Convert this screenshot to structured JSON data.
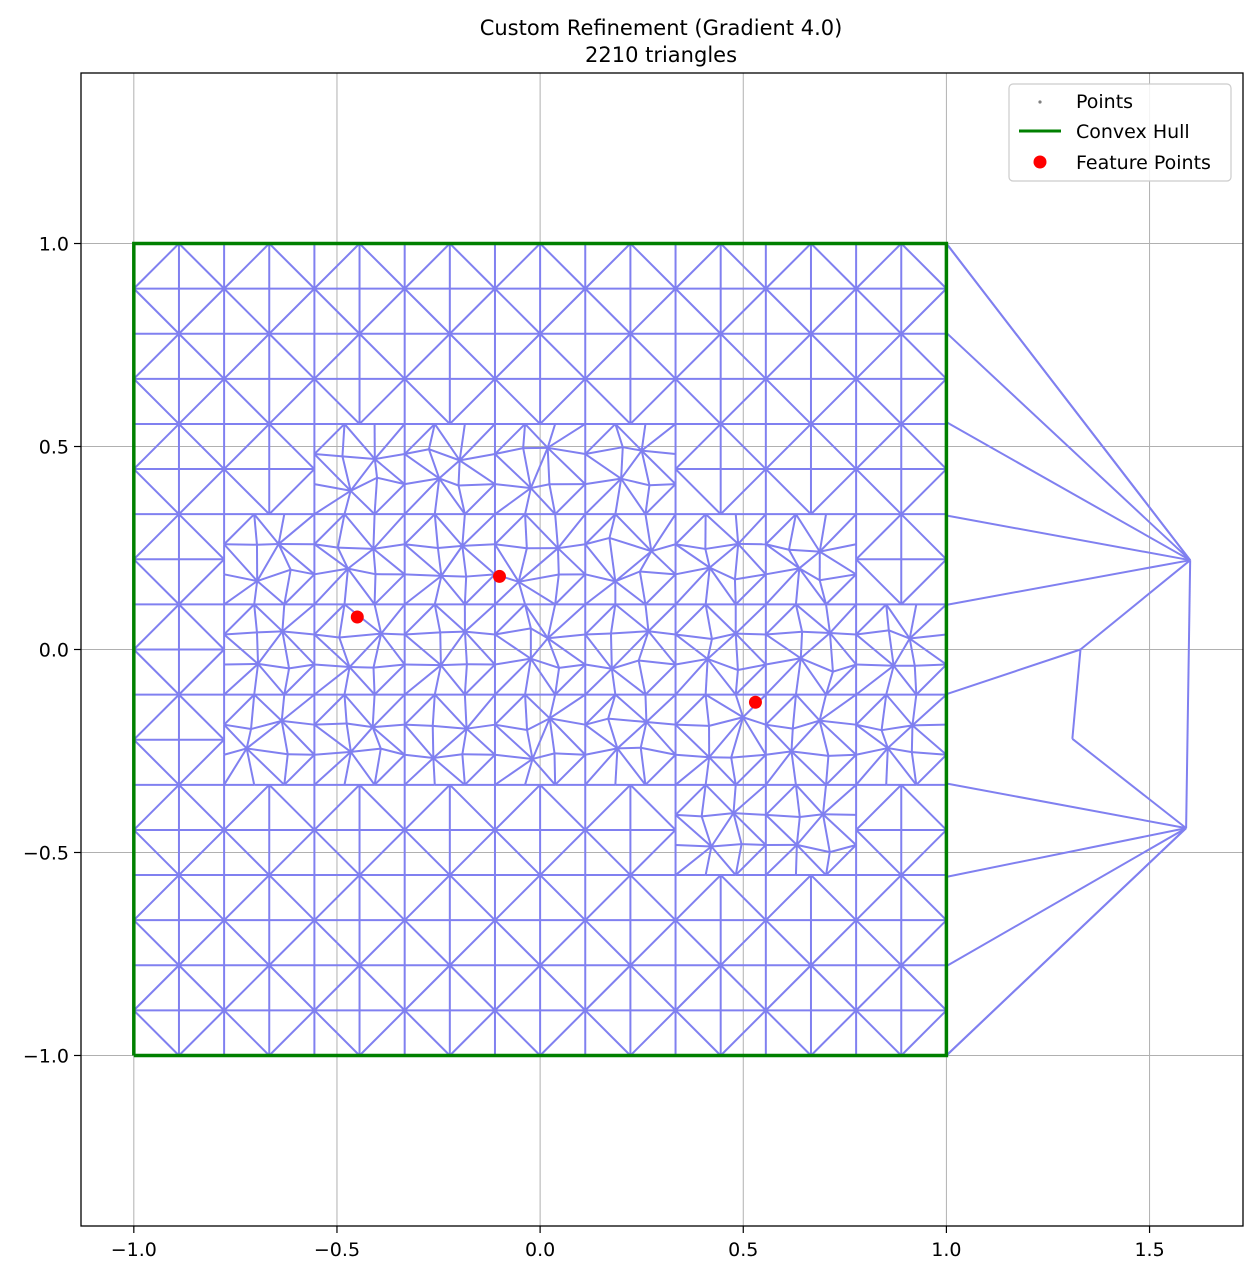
{
  "chart_data": {
    "type": "scatter",
    "title": "Custom Refinement (Gradient 4.0)",
    "subtitle": "2210 triangles",
    "xlabel": "",
    "ylabel": "",
    "xlim": [
      -1.13,
      1.73
    ],
    "ylim": [
      -1.42,
      1.42
    ],
    "x_ticks": [
      -1.0,
      -0.5,
      0.0,
      0.5,
      1.0,
      1.5
    ],
    "x_tick_labels": [
      "−1.0",
      "−0.5",
      "0.0",
      "0.5",
      "1.0",
      "1.5"
    ],
    "y_ticks": [
      1.0,
      0.5,
      0.0,
      -0.5,
      -1.0
    ],
    "y_tick_labels": [
      "1.0",
      "0.5",
      "0.0",
      "−0.5",
      "−1.0"
    ],
    "grid": true,
    "legend_position": "top-right",
    "series": [
      {
        "name": "Points",
        "kind": "points",
        "color": "#808080"
      },
      {
        "name": "Convex Hull",
        "kind": "line",
        "color": "#008000",
        "x": [
          -1.0,
          1.0,
          1.0,
          -1.0,
          -1.0
        ],
        "y": [
          -1.0,
          -1.0,
          1.0,
          1.0,
          -1.0
        ]
      },
      {
        "name": "Feature Points",
        "kind": "marker",
        "color": "#ff0000",
        "x": [
          -0.45,
          -0.1,
          0.53
        ],
        "y": [
          0.08,
          0.18,
          -0.13
        ]
      }
    ],
    "mesh_color": "#8080f0",
    "outside_points": {
      "x": [
        1.6,
        1.33,
        1.31,
        1.59
      ],
      "y": [
        0.22,
        0.0,
        -0.22,
        -0.44
      ]
    },
    "triangle_count": 2210
  }
}
